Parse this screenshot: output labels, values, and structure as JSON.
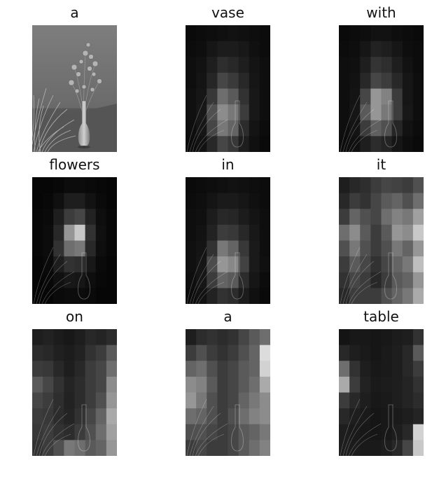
{
  "figure": {
    "panels": [
      {
        "caption": "a",
        "kind": "original"
      },
      {
        "caption": "vase",
        "kind": "attention",
        "grid": [
          [
            10,
            12,
            14,
            16,
            18,
            16,
            14,
            12
          ],
          [
            12,
            14,
            22,
            28,
            28,
            24,
            16,
            12
          ],
          [
            14,
            18,
            30,
            46,
            40,
            30,
            20,
            14
          ],
          [
            14,
            20,
            38,
            70,
            58,
            40,
            22,
            14
          ],
          [
            16,
            22,
            56,
            110,
            90,
            50,
            24,
            14
          ],
          [
            16,
            24,
            80,
            140,
            120,
            60,
            24,
            14
          ],
          [
            14,
            22,
            70,
            120,
            100,
            44,
            20,
            12
          ],
          [
            12,
            18,
            40,
            70,
            56,
            30,
            16,
            10
          ]
        ]
      },
      {
        "caption": "with",
        "kind": "attention",
        "grid": [
          [
            10,
            12,
            14,
            18,
            18,
            14,
            12,
            10
          ],
          [
            12,
            14,
            22,
            34,
            30,
            22,
            14,
            12
          ],
          [
            14,
            16,
            30,
            52,
            46,
            30,
            18,
            12
          ],
          [
            14,
            18,
            40,
            70,
            60,
            40,
            22,
            14
          ],
          [
            14,
            20,
            70,
            150,
            130,
            60,
            22,
            14
          ],
          [
            14,
            22,
            90,
            150,
            120,
            60,
            24,
            14
          ],
          [
            14,
            20,
            60,
            96,
            80,
            38,
            18,
            12
          ],
          [
            12,
            16,
            30,
            44,
            36,
            22,
            14,
            10
          ]
        ]
      },
      {
        "caption": "flowers",
        "kind": "attention",
        "grid": [
          [
            6,
            6,
            8,
            12,
            12,
            10,
            8,
            6
          ],
          [
            6,
            8,
            16,
            30,
            30,
            18,
            10,
            6
          ],
          [
            8,
            10,
            30,
            60,
            70,
            34,
            14,
            8
          ],
          [
            8,
            12,
            40,
            150,
            200,
            50,
            16,
            8
          ],
          [
            8,
            12,
            50,
            110,
            120,
            40,
            14,
            8
          ],
          [
            6,
            10,
            30,
            50,
            46,
            24,
            10,
            6
          ],
          [
            6,
            8,
            16,
            24,
            22,
            14,
            8,
            6
          ],
          [
            6,
            6,
            10,
            12,
            12,
            10,
            6,
            6
          ]
        ]
      },
      {
        "caption": "in",
        "kind": "attention",
        "grid": [
          [
            10,
            12,
            14,
            16,
            18,
            16,
            14,
            12
          ],
          [
            12,
            14,
            20,
            26,
            26,
            22,
            16,
            12
          ],
          [
            14,
            16,
            28,
            40,
            38,
            28,
            20,
            14
          ],
          [
            14,
            18,
            34,
            60,
            56,
            40,
            24,
            14
          ],
          [
            16,
            20,
            50,
            120,
            100,
            56,
            26,
            14
          ],
          [
            16,
            22,
            76,
            150,
            136,
            66,
            26,
            16
          ],
          [
            14,
            22,
            60,
            100,
            90,
            44,
            22,
            12
          ],
          [
            12,
            18,
            34,
            50,
            44,
            28,
            16,
            10
          ]
        ]
      },
      {
        "caption": "it",
        "kind": "attention",
        "grid": [
          [
            30,
            40,
            46,
            60,
            70,
            66,
            60,
            80
          ],
          [
            40,
            60,
            50,
            70,
            90,
            100,
            80,
            110
          ],
          [
            60,
            100,
            80,
            70,
            110,
            130,
            120,
            160
          ],
          [
            110,
            140,
            90,
            60,
            90,
            150,
            140,
            200
          ],
          [
            80,
            120,
            80,
            60,
            80,
            120,
            100,
            150
          ],
          [
            60,
            90,
            70,
            50,
            70,
            100,
            120,
            190
          ],
          [
            50,
            70,
            60,
            40,
            60,
            90,
            100,
            150
          ],
          [
            40,
            60,
            60,
            60,
            80,
            100,
            120,
            170
          ]
        ]
      },
      {
        "caption": "on",
        "kind": "attention",
        "grid": [
          [
            30,
            34,
            28,
            24,
            30,
            40,
            36,
            44
          ],
          [
            44,
            40,
            32,
            28,
            34,
            50,
            60,
            90
          ],
          [
            60,
            56,
            40,
            30,
            40,
            60,
            70,
            110
          ],
          [
            90,
            70,
            50,
            36,
            44,
            60,
            70,
            140
          ],
          [
            70,
            60,
            46,
            34,
            44,
            60,
            80,
            150
          ],
          [
            60,
            56,
            44,
            36,
            50,
            70,
            100,
            170
          ],
          [
            56,
            60,
            50,
            44,
            60,
            80,
            110,
            160
          ],
          [
            50,
            60,
            80,
            120,
            110,
            90,
            100,
            150
          ]
        ]
      },
      {
        "caption": "a",
        "kind": "attention",
        "grid": [
          [
            30,
            44,
            50,
            44,
            50,
            70,
            90,
            110
          ],
          [
            60,
            80,
            60,
            50,
            60,
            80,
            100,
            220
          ],
          [
            100,
            110,
            80,
            60,
            70,
            90,
            100,
            210
          ],
          [
            140,
            130,
            90,
            60,
            70,
            90,
            110,
            170
          ],
          [
            150,
            120,
            80,
            60,
            70,
            100,
            120,
            140
          ],
          [
            110,
            100,
            80,
            60,
            80,
            110,
            130,
            140
          ],
          [
            80,
            80,
            70,
            60,
            70,
            90,
            100,
            120
          ],
          [
            60,
            70,
            60,
            60,
            70,
            90,
            110,
            130
          ]
        ]
      },
      {
        "caption": "table",
        "kind": "attention",
        "grid": [
          [
            20,
            24,
            24,
            22,
            24,
            28,
            30,
            50
          ],
          [
            40,
            30,
            26,
            22,
            26,
            30,
            40,
            90
          ],
          [
            110,
            50,
            30,
            24,
            26,
            30,
            40,
            60
          ],
          [
            170,
            60,
            34,
            26,
            28,
            30,
            36,
            50
          ],
          [
            60,
            40,
            30,
            24,
            26,
            30,
            36,
            44
          ],
          [
            40,
            30,
            26,
            22,
            24,
            26,
            30,
            36
          ],
          [
            30,
            26,
            24,
            22,
            24,
            30,
            40,
            210
          ],
          [
            30,
            28,
            26,
            26,
            30,
            40,
            70,
            200
          ]
        ]
      }
    ]
  }
}
